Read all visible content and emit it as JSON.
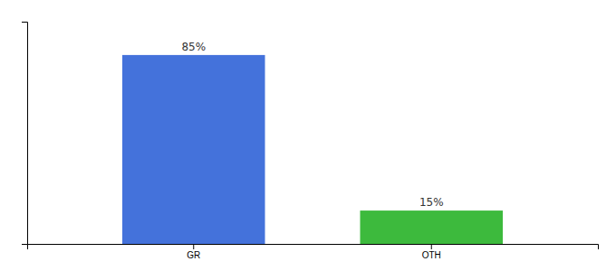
{
  "chart_data": {
    "type": "bar",
    "categories": [
      "GR",
      "OTH"
    ],
    "values": [
      85,
      15
    ],
    "value_labels": [
      "85%",
      "15%"
    ],
    "colors": [
      "#4472db",
      "#3dba3d"
    ],
    "ylim": [
      0,
      100
    ],
    "yticks": [],
    "data_labels": true,
    "tick_labels": "x"
  }
}
